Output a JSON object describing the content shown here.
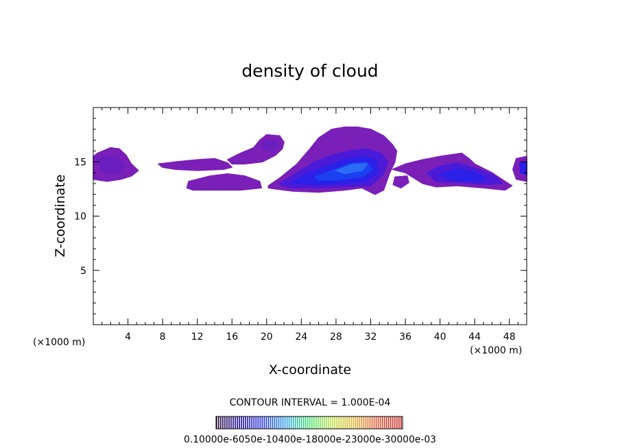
{
  "chart_data": {
    "type": "heatmap",
    "title": "density of cloud",
    "xlabel": "X-coordinate",
    "ylabel": "Z-coordinate",
    "x_unit": "(×1000 m)",
    "y_unit": "(×1000 m)",
    "xlim": [
      0,
      50
    ],
    "ylim": [
      0,
      20
    ],
    "x_ticks": [
      "4",
      "8",
      "12",
      "16",
      "20",
      "24",
      "28",
      "32",
      "36",
      "40",
      "44",
      "48"
    ],
    "x_tick_values": [
      4,
      8,
      12,
      16,
      20,
      24,
      28,
      32,
      36,
      40,
      44,
      48
    ],
    "y_ticks": [
      "5",
      "10",
      "15"
    ],
    "y_tick_values": [
      5,
      10,
      15
    ],
    "contour_interval_text": "CONTOUR INTERVAL = 1.000E-04",
    "colorbar_text": "0.10000e-6050e-10400e-18000e-23000e-30000e-03",
    "colorbar_colors": [
      "#2a0a3a",
      "#1e0a9c",
      "#2430e0",
      "#2aa0e0",
      "#3ce070",
      "#c0e040",
      "#e0b030",
      "#e05030",
      "#c02020"
    ],
    "cloud_colors": {
      "level1": "#7a1fb8",
      "level2": "#6a1ec0",
      "level3": "#4a1ad8",
      "level4": "#2a20e8",
      "level5": "#1a40f0",
      "level6": "#2a6cf5"
    },
    "clouds": [
      {
        "name": "cloud-a",
        "x": [
          0.0,
          0.5,
          2.0,
          3.0,
          3.8,
          4.4,
          5.2,
          4.4,
          3.2,
          1.6,
          0.0
        ],
        "z": [
          15.5,
          15.8,
          16.3,
          16.2,
          15.6,
          14.8,
          14.2,
          13.7,
          13.4,
          13.2,
          13.4
        ],
        "level": 1
      },
      {
        "name": "cloud-a-core",
        "x": [
          0.3,
          1.5,
          3.0,
          3.6,
          2.8,
          1.2
        ],
        "z": [
          15.2,
          15.6,
          15.3,
          14.6,
          13.9,
          14.0
        ],
        "level": 2
      },
      {
        "name": "cloud-b",
        "x": [
          7.5,
          9.5,
          12.0,
          14.0,
          15.5,
          16.0,
          15.0,
          12.0,
          9.5,
          8.0
        ],
        "z": [
          14.8,
          15.0,
          15.2,
          15.3,
          14.9,
          14.5,
          14.3,
          14.2,
          14.3,
          14.5
        ],
        "level": 1
      },
      {
        "name": "cloud-c",
        "x": [
          11.0,
          13.5,
          15.5,
          17.5,
          19.2,
          19.4,
          17.0,
          14.0,
          11.5,
          10.8
        ],
        "z": [
          13.2,
          13.7,
          13.9,
          13.7,
          13.2,
          12.6,
          12.4,
          12.4,
          12.4,
          12.6
        ],
        "level": 1
      },
      {
        "name": "cloud-d",
        "x": [
          15.5,
          17.0,
          18.5,
          19.2,
          20.0,
          21.5,
          22.0,
          21.8,
          21.0,
          19.5,
          17.5,
          16.0
        ],
        "z": [
          15.2,
          15.8,
          16.3,
          17.0,
          17.5,
          17.4,
          16.8,
          16.2,
          15.6,
          15.0,
          14.8,
          14.8
        ],
        "level": 1
      },
      {
        "name": "cloud-d-core",
        "x": [
          19.5,
          21.0,
          21.5,
          20.5,
          19.5
        ],
        "z": [
          16.8,
          17.0,
          16.4,
          16.0,
          16.2
        ],
        "level": 2
      },
      {
        "name": "cloud-e",
        "x": [
          20.2,
          21.5,
          23.5,
          25.0,
          26.0,
          27.5,
          29.0,
          30.5,
          32.0,
          33.5,
          34.5,
          35.0,
          34.8,
          34.2,
          33.5,
          32.5,
          31.0,
          29.0,
          26.0,
          23.0,
          21.0,
          20.2
        ],
        "z": [
          12.8,
          13.5,
          14.8,
          16.2,
          17.2,
          18.0,
          18.2,
          18.2,
          18.0,
          17.4,
          16.6,
          16.0,
          15.0,
          14.0,
          12.4,
          12.0,
          12.6,
          12.4,
          12.2,
          12.3,
          12.5,
          12.6
        ],
        "level": 1
      },
      {
        "name": "cloud-e-2",
        "x": [
          21.5,
          23.5,
          25.5,
          27.5,
          29.5,
          31.5,
          33.2,
          34.0,
          33.4,
          32.0,
          29.0,
          26.0,
          23.0,
          21.8
        ],
        "z": [
          13.0,
          14.0,
          15.0,
          15.6,
          16.0,
          16.2,
          15.8,
          15.0,
          13.8,
          12.8,
          12.7,
          12.6,
          12.6,
          12.8
        ],
        "level": 3
      },
      {
        "name": "cloud-e-3",
        "x": [
          23.0,
          25.0,
          27.0,
          29.0,
          31.0,
          32.6,
          32.8,
          31.5,
          28.5,
          25.5,
          23.5
        ],
        "z": [
          13.2,
          14.0,
          14.6,
          15.2,
          15.5,
          15.2,
          14.0,
          13.2,
          13.0,
          12.9,
          13.0
        ],
        "level": 4
      },
      {
        "name": "cloud-e-4",
        "x": [
          25.5,
          27.5,
          29.5,
          31.5,
          32.2,
          31.0,
          28.0,
          26.0
        ],
        "z": [
          13.6,
          14.2,
          14.8,
          15.0,
          14.3,
          13.6,
          13.3,
          13.3
        ],
        "level": 5
      },
      {
        "name": "cloud-e-5",
        "x": [
          28.0,
          30.0,
          31.6,
          31.0,
          29.0
        ],
        "z": [
          14.2,
          14.8,
          14.8,
          14.2,
          13.9
        ],
        "level": 6
      },
      {
        "name": "cloud-f",
        "x": [
          34.5,
          36.0,
          38.0,
          40.0,
          42.5,
          43.5,
          44.0,
          46.0,
          47.5,
          48.3,
          47.5,
          45.0,
          42.0,
          39.5,
          38.0,
          36.0
        ],
        "z": [
          14.3,
          14.8,
          15.2,
          15.5,
          15.8,
          15.2,
          14.8,
          14.0,
          13.2,
          12.8,
          12.4,
          12.6,
          12.8,
          12.7,
          13.0,
          14.0
        ],
        "level": 1
      },
      {
        "name": "cloud-f-core",
        "x": [
          38.5,
          40.0,
          42.0,
          44.5,
          46.5,
          47.2,
          45.5,
          42.0,
          39.5
        ],
        "z": [
          14.0,
          14.6,
          14.9,
          14.3,
          13.6,
          13.0,
          12.9,
          13.1,
          13.2
        ],
        "level": 3
      },
      {
        "name": "cloud-f-inner",
        "x": [
          40.0,
          42.0,
          44.0,
          45.5,
          44.0,
          41.5
        ],
        "z": [
          13.8,
          14.4,
          14.0,
          13.4,
          13.2,
          13.3
        ],
        "level": 4
      },
      {
        "name": "cloud-g",
        "x": [
          34.8,
          36.2,
          36.4,
          35.5,
          34.6
        ],
        "z": [
          13.6,
          13.7,
          13.1,
          12.6,
          12.9
        ],
        "level": 1
      },
      {
        "name": "cloud-h",
        "x": [
          48.8,
          50.0,
          50.0,
          48.8,
          48.4
        ],
        "z": [
          15.3,
          15.5,
          13.2,
          13.4,
          14.3
        ],
        "level": 1
      },
      {
        "name": "cloud-h-core",
        "x": [
          49.2,
          50.0,
          50.0,
          49.3
        ],
        "z": [
          14.9,
          15.0,
          13.8,
          14.0
        ],
        "level": 4
      }
    ]
  }
}
